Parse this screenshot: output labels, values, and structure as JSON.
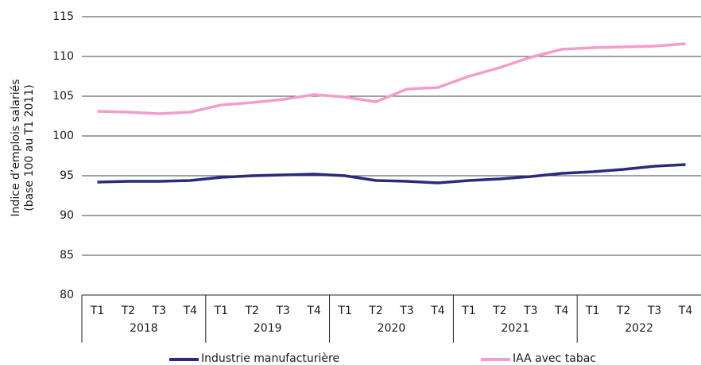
{
  "chart_data": {
    "type": "line",
    "ylabel": [
      "Indice d’emplois salariés",
      "(base 100 au T1 2011)"
    ],
    "categories": [
      "T1",
      "T2",
      "T3",
      "T4",
      "T1",
      "T2",
      "T3",
      "T4",
      "T1",
      "T2",
      "T3",
      "T4",
      "T1",
      "T2",
      "T3",
      "T4",
      "T1",
      "T2",
      "T3",
      "T4"
    ],
    "groups": [
      "2018",
      "2019",
      "2020",
      "2021",
      "2022"
    ],
    "series": [
      {
        "name": "Industrie manufacturière",
        "color": "#2b2a7c",
        "values": [
          94.2,
          94.3,
          94.3,
          94.4,
          94.8,
          95.0,
          95.1,
          95.2,
          95.0,
          94.4,
          94.3,
          94.1,
          94.4,
          94.6,
          94.9,
          95.3,
          95.5,
          95.8,
          96.2,
          96.4
        ]
      },
      {
        "name": "IAA avec tabac",
        "color": "#f29dcb",
        "values": [
          103.1,
          103.0,
          102.8,
          103.0,
          103.9,
          104.2,
          104.6,
          105.2,
          104.9,
          104.3,
          105.9,
          106.1,
          107.5,
          108.6,
          109.9,
          110.9,
          111.1,
          111.2,
          111.3,
          111.6
        ]
      }
    ],
    "ylim": [
      80,
      115
    ],
    "yticks": [
      80,
      85,
      90,
      95,
      100,
      105,
      110,
      115
    ],
    "grid": true,
    "legend": "bottom"
  }
}
